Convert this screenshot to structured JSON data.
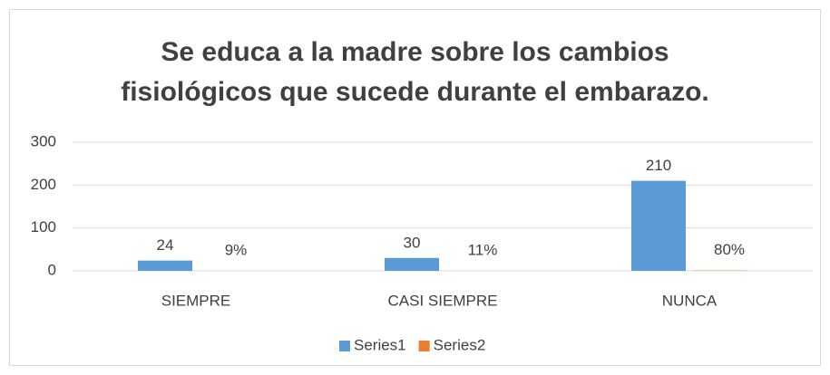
{
  "chart_data": {
    "type": "bar",
    "title": "Se educa a la madre sobre los cambios fisiológicos que sucede durante el embarazo.",
    "categories": [
      "SIEMPRE",
      "CASI SIEMPRE",
      "NUNCA"
    ],
    "series": [
      {
        "name": "Series1",
        "color": "#5b9bd5",
        "values": [
          24,
          30,
          210
        ]
      },
      {
        "name": "Series2",
        "color": "#ed7d31",
        "values": [
          0.09,
          0.11,
          0.8
        ],
        "value_labels": [
          "9%",
          "11%",
          "80%"
        ]
      }
    ],
    "ylim": [
      0,
      300
    ],
    "yticks": [
      0,
      100,
      200,
      300
    ],
    "grid": true,
    "legend": "bottom"
  }
}
